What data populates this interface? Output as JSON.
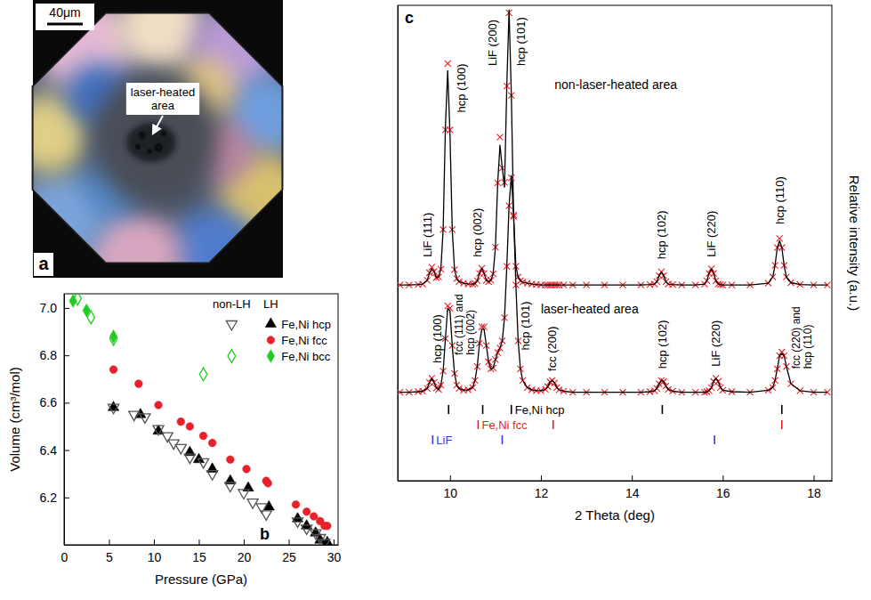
{
  "photo": {
    "letter": "a",
    "scale_bar": "40μm",
    "annotation": "laser-heated area"
  },
  "chart_data": [
    {
      "type": "scatter",
      "letter": "b",
      "x_label": "Pressure (GPa)",
      "y_label": "Volume (cm³/mol)",
      "xlim": [
        0,
        30.5
      ],
      "xticks": [
        0,
        5,
        10,
        15,
        20,
        25,
        30
      ],
      "ylim": [
        6.0,
        7.06
      ],
      "yticks": [
        6.2,
        6.4,
        6.6,
        6.8,
        {
          "value": 7.0,
          "label": "7.0"
        }
      ],
      "legend": "upper right",
      "legend_columns": [
        "non-LH",
        "LH"
      ],
      "series": [
        {
          "name": "Fe,Ni hcp",
          "group": "LH",
          "color": "#000000",
          "marker": "triangle-up",
          "x": [
            5.5,
            8.5,
            10.5,
            14.0,
            15.0,
            16.5,
            18.5,
            20.5,
            22.8,
            26.0,
            27.0,
            28.0,
            28.5,
            29.3
          ],
          "values": [
            6.58,
            6.55,
            6.48,
            6.39,
            6.36,
            6.32,
            6.27,
            6.24,
            6.16,
            6.11,
            6.08,
            6.05,
            6.02,
            6.01
          ]
        },
        {
          "name": "Fe,Ni fcc",
          "group": "LH",
          "color": "#e8202a",
          "marker": "circle",
          "x": [
            5.5,
            8.3,
            10.5,
            13.0,
            14.0,
            15.5,
            16.5,
            18.5,
            20.3,
            22.5,
            22.7,
            25.8,
            27.0,
            27.8,
            28.5,
            29.0,
            29.3
          ],
          "values": [
            6.74,
            6.68,
            6.59,
            6.52,
            6.5,
            6.46,
            6.43,
            6.36,
            6.32,
            6.27,
            6.26,
            6.17,
            6.14,
            6.12,
            6.1,
            6.08,
            6.08
          ]
        },
        {
          "name": "Fe,Ni bcc",
          "group": "LH",
          "color": "#22cc22",
          "marker": "diamond",
          "x": [
            1.0,
            2.5,
            5.5
          ],
          "values": [
            7.03,
            6.99,
            6.88
          ]
        },
        {
          "name": "Fe,Ni hcp",
          "group": "non-LH",
          "color": "#555555",
          "marker": "triangle-down-open",
          "x": [
            5.5,
            7.8,
            9.0,
            10.5,
            11.5,
            12.2,
            13.0,
            14.0,
            15.5,
            16.5,
            18.5,
            20.0,
            21.0,
            22.0,
            22.5,
            26.0,
            27.0,
            28.0,
            28.5,
            29.0
          ],
          "values": [
            6.58,
            6.55,
            6.54,
            6.49,
            6.46,
            6.43,
            6.41,
            6.37,
            6.35,
            6.3,
            6.25,
            6.22,
            6.18,
            6.16,
            6.13,
            6.1,
            6.07,
            6.05,
            6.03,
            6.01
          ]
        },
        {
          "name": "Fe,Ni bcc",
          "group": "non-LH",
          "color": "#22cc22",
          "marker": "diamond-open",
          "x": [
            1.5,
            3.0,
            5.5,
            15.5
          ],
          "values": [
            7.04,
            6.96,
            6.87,
            6.72
          ]
        }
      ]
    },
    {
      "type": "line",
      "letter": "c",
      "x_label": "2 Theta (deg)",
      "y_label": "Relative intensity (a.u.)",
      "xlim": [
        8.85,
        18.4
      ],
      "xticks": [
        10,
        12,
        14,
        16,
        18
      ],
      "ylim": [
        0,
        102
      ],
      "tick_labels": "x",
      "x": [
        8.9,
        9.1,
        9.3,
        9.4,
        9.5,
        9.55,
        9.6,
        9.65,
        9.7,
        9.75,
        9.8,
        9.85,
        9.9,
        9.95,
        10.0,
        10.05,
        10.1,
        10.15,
        10.2,
        10.3,
        10.4,
        10.5,
        10.55,
        10.6,
        10.65,
        10.7,
        10.75,
        10.8,
        10.85,
        10.9,
        10.95,
        11.0,
        11.05,
        11.1,
        11.15,
        11.2,
        11.25,
        11.3,
        11.35,
        11.4,
        11.45,
        11.5,
        11.55,
        11.6,
        11.7,
        11.8,
        11.9,
        12.0,
        12.1,
        12.15,
        12.2,
        12.25,
        12.3,
        12.35,
        12.4,
        12.5,
        12.7,
        13.0,
        13.4,
        13.8,
        14.2,
        14.4,
        14.5,
        14.55,
        14.6,
        14.65,
        14.7,
        14.75,
        14.8,
        14.9,
        15.1,
        15.4,
        15.6,
        15.65,
        15.7,
        15.75,
        15.8,
        15.85,
        15.9,
        15.95,
        16.0,
        16.2,
        16.6,
        17.0,
        17.1,
        17.15,
        17.2,
        17.25,
        17.3,
        17.35,
        17.4,
        17.5,
        17.7,
        18.0,
        18.3
      ],
      "series": [
        {
          "type": "scatter",
          "marker": "x",
          "color": "#e8202a",
          "values": [
            42.0,
            42.0,
            42.1,
            42.2,
            43.0,
            44.6,
            45.8,
            44.9,
            43.6,
            43.7,
            45.4,
            53.9,
            75.3,
            89.5,
            75.3,
            53.9,
            45.3,
            43.4,
            42.7,
            42.4,
            42.2,
            42.2,
            42.3,
            42.9,
            44.5,
            45.6,
            44.5,
            43.0,
            42.7,
            43.0,
            44.4,
            50.1,
            63.9,
            73.7,
            67.1,
            64.0,
            84.7,
            100.4,
            82.7,
            56.7,
            46.0,
            43.7,
            42.9,
            42.6,
            42.4,
            42.2,
            42.1,
            42.0,
            42.0,
            42.0,
            42.0,
            42.0,
            42.0,
            42.0,
            42.0,
            42.0,
            42.0,
            42.0,
            42.0,
            42.0,
            42.0,
            42.1,
            42.2,
            42.7,
            44.0,
            44.8,
            44.0,
            42.7,
            42.2,
            42.1,
            42.0,
            42.0,
            42.2,
            42.9,
            44.5,
            45.5,
            44.5,
            42.9,
            42.2,
            42.1,
            42.0,
            42.0,
            42.0,
            42.4,
            43.7,
            46.2,
            50.0,
            52.0,
            50.0,
            46.2,
            43.7,
            42.5,
            42.1,
            42.0,
            42.0
          ]
        },
        {
          "type": "line",
          "color": "#000000",
          "line_style": "solid",
          "values": [
            42.0,
            42.0,
            42.1,
            42.2,
            43.0,
            44.6,
            45.5,
            44.9,
            43.6,
            43.7,
            45.4,
            53.9,
            76.0,
            88.0,
            74.5,
            53.9,
            45.3,
            43.4,
            42.7,
            42.4,
            42.2,
            42.2,
            42.3,
            42.9,
            44.5,
            45.6,
            44.5,
            43.0,
            42.7,
            43.0,
            44.4,
            50.1,
            63.9,
            72.0,
            67.1,
            63.0,
            84.7,
            101.0,
            82.7,
            56.7,
            46.0,
            43.7,
            42.9,
            42.6,
            42.4,
            42.2,
            42.1,
            42.0,
            42.0,
            42.0,
            42.0,
            42.0,
            42.0,
            42.0,
            42.0,
            42.0,
            42.0,
            42.0,
            42.0,
            42.0,
            42.0,
            42.1,
            42.2,
            42.7,
            44.0,
            44.8,
            44.0,
            42.7,
            42.2,
            42.1,
            42.0,
            42.0,
            42.2,
            42.9,
            44.5,
            45.5,
            44.5,
            42.9,
            42.2,
            42.1,
            42.0,
            42.0,
            42.0,
            42.4,
            43.7,
            46.2,
            50.0,
            51.5,
            50.0,
            46.2,
            43.7,
            42.5,
            42.1,
            42.0,
            42.0
          ]
        },
        {
          "type": "scatter",
          "marker": "x",
          "color": "#e8202a",
          "values": [
            19.0,
            19.0,
            19.1,
            19.2,
            19.8,
            21.1,
            22.0,
            21.1,
            19.9,
            19.6,
            20.5,
            23.5,
            30.5,
            37.5,
            37.0,
            29.0,
            23.0,
            20.5,
            19.8,
            19.4,
            19.5,
            20.0,
            21.5,
            24.5,
            29.5,
            33.0,
            33.0,
            29.0,
            25.5,
            24.0,
            24.2,
            26.0,
            27.5,
            28.5,
            30.0,
            35.0,
            46.0,
            59.0,
            65.0,
            57.0,
            42.0,
            30.0,
            24.0,
            21.5,
            20.0,
            19.5,
            19.3,
            19.3,
            19.6,
            20.2,
            21.2,
            21.5,
            21.0,
            20.0,
            19.5,
            19.2,
            19.0,
            19.0,
            19.0,
            19.0,
            19.0,
            19.1,
            19.3,
            19.8,
            20.8,
            21.5,
            21.3,
            20.3,
            19.6,
            19.2,
            19.0,
            19.0,
            19.0,
            19.1,
            19.3,
            20.0,
            21.3,
            22.0,
            21.3,
            20.0,
            19.4,
            19.1,
            19.0,
            19.4,
            20.0,
            21.5,
            24.0,
            26.8,
            27.6,
            26.8,
            24.5,
            20.8,
            19.3,
            19.0,
            19.0
          ]
        },
        {
          "type": "line",
          "color": "#000000",
          "line_style": "solid",
          "values": [
            19.0,
            19.0,
            19.1,
            19.2,
            19.8,
            21.1,
            22.0,
            21.1,
            19.9,
            19.6,
            20.5,
            23.5,
            30.5,
            37.0,
            36.5,
            29.0,
            23.0,
            20.5,
            19.8,
            19.4,
            19.5,
            20.0,
            21.5,
            24.5,
            29.5,
            32.5,
            32.5,
            29.0,
            25.5,
            24.0,
            24.2,
            26.0,
            27.5,
            28.5,
            30.0,
            35.0,
            46.0,
            59.0,
            65.5,
            57.0,
            42.0,
            30.0,
            24.0,
            21.5,
            20.0,
            19.5,
            19.3,
            19.3,
            19.6,
            20.2,
            21.2,
            21.5,
            21.0,
            20.0,
            19.5,
            19.2,
            19.0,
            19.0,
            19.0,
            19.0,
            19.0,
            19.1,
            19.3,
            19.8,
            20.8,
            21.5,
            21.3,
            20.3,
            19.6,
            19.2,
            19.0,
            19.0,
            19.0,
            19.1,
            19.3,
            20.0,
            21.3,
            22.0,
            21.3,
            20.0,
            19.4,
            19.1,
            19.0,
            19.4,
            20.0,
            21.5,
            24.0,
            26.8,
            27.3,
            26.8,
            24.5,
            20.8,
            19.3,
            19.0,
            19.0
          ]
        }
      ],
      "annotations": [
        {
          "text": "non-laser-heated area",
          "x": 12.3,
          "y": 84
        },
        {
          "text": "laser-heated area",
          "x": 12.0,
          "y": 36
        }
      ],
      "peak_labels": [
        {
          "text": "LiF (111)",
          "x": 9.5,
          "y": 48
        },
        {
          "text": "hcp (100)",
          "x": 10.25,
          "y": 79
        },
        {
          "text": "hcp (002)",
          "x": 10.6,
          "y": 48
        },
        {
          "text": "LiF (200)",
          "x": 10.93,
          "y": 89
        },
        {
          "text": "hcp (101)",
          "x": 11.55,
          "y": 89
        },
        {
          "text": "hcp (102)",
          "x": 14.65,
          "y": 47.5
        },
        {
          "text": "LiF (220)",
          "x": 15.75,
          "y": 48
        },
        {
          "text": "hcp (110)",
          "x": 17.25,
          "y": 55
        },
        {
          "text": "hcp (100)",
          "x": 9.72,
          "y": 25.2
        },
        {
          "text": [
            "fcc (111) and",
            "hcp (002)"
          ],
          "x": 10.2,
          "y": 27
        },
        {
          "text": "hcp (101)",
          "x": 11.66,
          "y": 28
        },
        {
          "text": "fcc (200)",
          "x": 12.25,
          "y": 23.5
        },
        {
          "text": "hcp (102)",
          "x": 14.67,
          "y": 24
        },
        {
          "text": "LiF (220)",
          "x": 15.85,
          "y": 24.5
        },
        {
          "text": [
            "fcc (220) and",
            "hcp (110)"
          ],
          "x": 17.62,
          "y": 24
        }
      ],
      "reference_peaks": [
        {
          "name": "Fe,Ni hcp",
          "color": "#000000",
          "values": [
            9.97,
            10.72,
            11.35,
            14.67,
            17.3
          ]
        },
        {
          "name": "Fe,Ni fcc",
          "color": "#e8202a",
          "values": [
            10.62,
            12.27,
            17.3
          ]
        },
        {
          "name": "LiF",
          "color": "#3a3adf",
          "values": [
            9.62,
            11.15,
            15.82
          ]
        }
      ]
    }
  ]
}
